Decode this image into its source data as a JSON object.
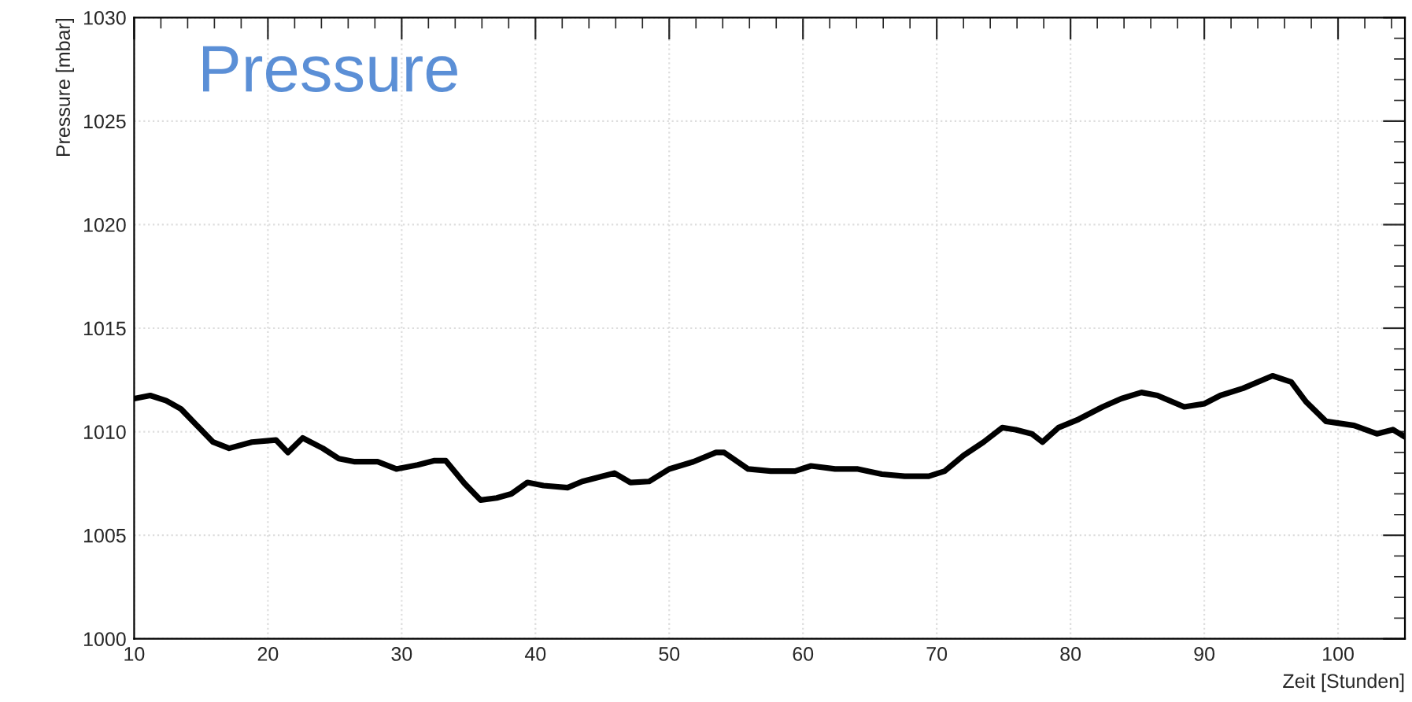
{
  "chart_data": {
    "type": "line",
    "title": "Pressure",
    "xlabel": "Zeit [Stunden]",
    "ylabel": "Pressure [mbar]",
    "xlim": [
      10,
      105
    ],
    "xticks": [
      10,
      20,
      30,
      40,
      50,
      60,
      70,
      80,
      90,
      100
    ],
    "ylim": [
      1000,
      1030
    ],
    "yticks": [
      1000,
      1005,
      1010,
      1015,
      1020,
      1025,
      1030
    ],
    "grid": true,
    "marker": "none",
    "line_style": "solid",
    "series": [
      {
        "color": "#000000",
        "x": [
          10,
          11.2,
          12.4,
          13.5,
          14.7,
          15.9,
          17.1,
          18.8,
          20.6,
          21.5,
          22.6,
          24.1,
          25.3,
          26.5,
          28.2,
          29.6,
          31.2,
          32.4,
          33.3,
          34.7,
          35.9,
          37.1,
          38.2,
          39.4,
          40.6,
          42.4,
          43.5,
          44.7,
          45.9,
          47.1,
          48.5,
          50,
          51.8,
          53.5,
          54.1,
          55.9,
          57.6,
          59.4,
          60.6,
          62.4,
          64.1,
          65.9,
          67.6,
          69.4,
          70.6,
          72,
          73.5,
          74.9,
          75.9,
          77.1,
          77.9,
          79.1,
          80.6,
          82.4,
          83.8,
          85.3,
          86.5,
          88.5,
          90,
          91.2,
          92.9,
          95.1,
          96.5,
          97.6,
          99.1,
          101.2,
          102.9,
          104.1,
          105
        ],
        "values": [
          1011.6,
          1011.75,
          1011.5,
          1011.1,
          1010.3,
          1009.5,
          1009.2,
          1009.5,
          1009.6,
          1009.0,
          1009.7,
          1009.2,
          1008.7,
          1008.55,
          1008.55,
          1008.2,
          1008.4,
          1008.6,
          1008.6,
          1007.5,
          1006.7,
          1006.8,
          1007.0,
          1007.55,
          1007.4,
          1007.3,
          1007.6,
          1007.8,
          1008.0,
          1007.55,
          1007.6,
          1008.2,
          1008.55,
          1009.0,
          1009.0,
          1008.2,
          1008.1,
          1008.1,
          1008.35,
          1008.2,
          1008.2,
          1007.95,
          1007.85,
          1007.85,
          1008.1,
          1008.85,
          1009.5,
          1010.2,
          1010.1,
          1009.9,
          1009.5,
          1010.2,
          1010.6,
          1011.2,
          1011.6,
          1011.9,
          1011.75,
          1011.2,
          1011.35,
          1011.75,
          1012.1,
          1012.7,
          1012.4,
          1011.45,
          1010.5,
          1010.3,
          1009.9,
          1010.1,
          1009.75
        ]
      }
    ]
  }
}
